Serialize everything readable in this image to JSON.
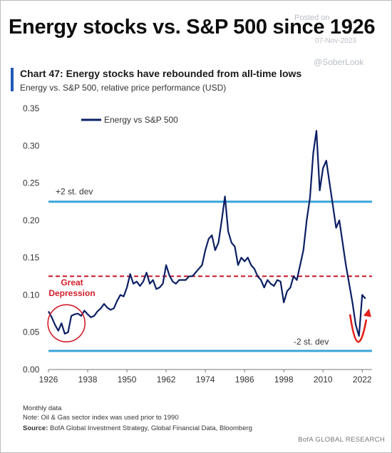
{
  "headline": "Energy stocks vs. S&P 500 since 1926",
  "watermark": {
    "posted": "Posted on",
    "date": "07-Nov-2023",
    "handle": "@SoberLook"
  },
  "chart_data": {
    "type": "line",
    "title": "Chart 47: Energy stocks have rebounded from all-time lows",
    "subtitle": "Energy vs. S&P 500, relative price performance (USD)",
    "xlabel": "",
    "ylabel": "",
    "xlim": [
      1926,
      2025
    ],
    "ylim": [
      0,
      0.35
    ],
    "x_ticks": [
      "1926",
      "1938",
      "1950",
      "1962",
      "1974",
      "1986",
      "1998",
      "2010",
      "2022"
    ],
    "y_ticks": [
      "0.00",
      "0.05",
      "0.10",
      "0.15",
      "0.20",
      "0.25",
      "0.30",
      "0.35"
    ],
    "grid": false,
    "legend": {
      "position": "top-left",
      "entries": [
        "Energy vs  S&P 500"
      ]
    },
    "series": [
      {
        "name": "Energy vs  S&P 500",
        "color": "#0b1f64",
        "x": [
          1926,
          1927,
          1928,
          1929,
          1930,
          1931,
          1932,
          1933,
          1934,
          1935,
          1936,
          1937,
          1938,
          1939,
          1940,
          1941,
          1942,
          1943,
          1944,
          1945,
          1946,
          1947,
          1948,
          1949,
          1950,
          1951,
          1952,
          1953,
          1954,
          1955,
          1956,
          1957,
          1958,
          1959,
          1960,
          1961,
          1962,
          1963,
          1964,
          1965,
          1966,
          1967,
          1968,
          1969,
          1970,
          1971,
          1972,
          1973,
          1974,
          1975,
          1976,
          1977,
          1978,
          1979,
          1980,
          1981,
          1982,
          1983,
          1984,
          1985,
          1986,
          1987,
          1988,
          1989,
          1990,
          1991,
          1992,
          1993,
          1994,
          1995,
          1996,
          1997,
          1998,
          1999,
          2000,
          2001,
          2002,
          2003,
          2004,
          2005,
          2006,
          2007,
          2008,
          2009,
          2010,
          2011,
          2012,
          2013,
          2014,
          2015,
          2016,
          2017,
          2018,
          2019,
          2020,
          2021,
          2022,
          2023
        ],
        "values": [
          0.078,
          0.07,
          0.06,
          0.052,
          0.062,
          0.048,
          0.05,
          0.072,
          0.074,
          0.075,
          0.072,
          0.079,
          0.074,
          0.07,
          0.072,
          0.078,
          0.082,
          0.088,
          0.083,
          0.08,
          0.082,
          0.092,
          0.1,
          0.098,
          0.11,
          0.128,
          0.115,
          0.118,
          0.112,
          0.118,
          0.13,
          0.115,
          0.12,
          0.108,
          0.11,
          0.115,
          0.14,
          0.126,
          0.118,
          0.115,
          0.12,
          0.12,
          0.12,
          0.125,
          0.125,
          0.13,
          0.135,
          0.14,
          0.16,
          0.175,
          0.18,
          0.16,
          0.17,
          0.2,
          0.232,
          0.185,
          0.17,
          0.165,
          0.14,
          0.15,
          0.145,
          0.15,
          0.14,
          0.135,
          0.125,
          0.12,
          0.11,
          0.12,
          0.115,
          0.112,
          0.12,
          0.118,
          0.09,
          0.105,
          0.11,
          0.125,
          0.12,
          0.14,
          0.16,
          0.2,
          0.23,
          0.29,
          0.32,
          0.24,
          0.27,
          0.28,
          0.25,
          0.22,
          0.19,
          0.2,
          0.17,
          0.14,
          0.115,
          0.09,
          0.06,
          0.045,
          0.1,
          0.095
        ]
      }
    ],
    "reference_lines": [
      {
        "label": "+2 st. dev",
        "value": 0.225,
        "color": "#3aa6d9",
        "style": "solid"
      },
      {
        "label": "",
        "value": 0.125,
        "color": "#c8182a",
        "style": "dashed"
      },
      {
        "label": "-2 st. dev",
        "value": 0.025,
        "color": "#3aa6d9",
        "style": "solid"
      }
    ],
    "annotations": [
      {
        "text": [
          "Great",
          "Depression"
        ],
        "color": "#d21f2b",
        "x": 1931.5,
        "y": 0.062
      }
    ]
  },
  "notes": {
    "line1": "Monthly data",
    "line2": "Note: Oil & Gas sector  index was used prior to 1990",
    "source_label": "Source:",
    "source_text": "  BofA Global Investment Strategy, Global Financial Data, Bloomberg"
  },
  "brand": "BofA GLOBAL RESEARCH"
}
